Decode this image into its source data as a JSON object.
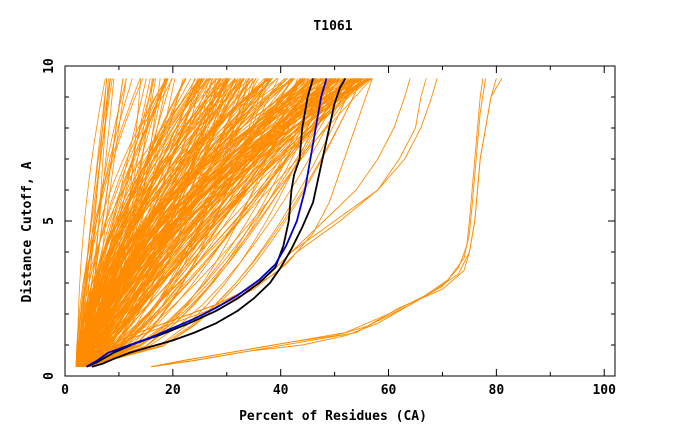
{
  "chart_data": {
    "type": "line",
    "title": "T1061",
    "xlabel": "Percent of Residues (CA)",
    "ylabel": "Distance Cutoff, A",
    "xlim": [
      0,
      102
    ],
    "ylim": [
      0,
      10
    ],
    "x_ticks": [
      0,
      20,
      40,
      60,
      80,
      100
    ],
    "y_ticks": [
      0,
      5,
      10
    ],
    "x_tick_labels": [
      "0",
      "20",
      "40",
      "60",
      "80",
      "100"
    ],
    "y_tick_labels": [
      "0",
      "5",
      "10"
    ],
    "grid": false,
    "legend": "none",
    "colors": {
      "bulk": "#ff8c00",
      "highlight_black": "#000000",
      "highlight_blue": "#0000cd",
      "axis": "#000000"
    },
    "bulk_envelope": {
      "color": "#ff8c00",
      "count": 260,
      "y_min": 0.3,
      "y_max": 9.6,
      "x_start_range": [
        2,
        5
      ],
      "x_end_range": [
        6,
        57
      ]
    },
    "series": [
      {
        "color": "#ff8c00",
        "points": [
          [
            2,
            0.3
          ],
          [
            6,
            0.8
          ],
          [
            12,
            1.3
          ],
          [
            20,
            1.8
          ],
          [
            28,
            2.3
          ],
          [
            34,
            2.8
          ],
          [
            38,
            3.3
          ],
          [
            42,
            4.0
          ],
          [
            50,
            5.0
          ],
          [
            58,
            6.0
          ],
          [
            63,
            7.0
          ],
          [
            66,
            8.0
          ],
          [
            68,
            9.0
          ],
          [
            69,
            9.6
          ]
        ]
      },
      {
        "color": "#ff8c00",
        "points": [
          [
            2,
            0.3
          ],
          [
            6,
            0.8
          ],
          [
            12,
            1.3
          ],
          [
            20,
            1.8
          ],
          [
            28,
            2.3
          ],
          [
            34,
            2.8
          ],
          [
            39,
            3.3
          ],
          [
            43,
            4.0
          ],
          [
            51,
            5.0
          ],
          [
            58,
            6.0
          ],
          [
            62,
            7.0
          ],
          [
            65,
            8.0
          ],
          [
            66,
            9.0
          ],
          [
            67,
            9.6
          ]
        ]
      },
      {
        "color": "#ff8c00",
        "points": [
          [
            2,
            0.3
          ],
          [
            6,
            0.8
          ],
          [
            12,
            1.3
          ],
          [
            20,
            1.8
          ],
          [
            28,
            2.3
          ],
          [
            34,
            2.8
          ],
          [
            38,
            3.3
          ],
          [
            42,
            4.0
          ],
          [
            48,
            5.0
          ],
          [
            54,
            6.0
          ],
          [
            58,
            7.0
          ],
          [
            61,
            8.0
          ],
          [
            63,
            9.0
          ],
          [
            64,
            9.6
          ]
        ]
      },
      {
        "color": "#ff8c00",
        "points": [
          [
            16,
            0.3
          ],
          [
            22,
            0.5
          ],
          [
            32,
            0.8
          ],
          [
            42,
            1.1
          ],
          [
            52,
            1.4
          ],
          [
            60,
            2.0
          ],
          [
            68,
            2.7
          ],
          [
            73,
            3.3
          ],
          [
            75,
            4.0
          ],
          [
            76,
            5.0
          ],
          [
            76.5,
            6.0
          ],
          [
            77,
            7.0
          ],
          [
            78,
            8.0
          ],
          [
            79,
            9.0
          ],
          [
            80,
            9.6
          ]
        ]
      },
      {
        "color": "#ff8c00",
        "points": [
          [
            16,
            0.3
          ],
          [
            24,
            0.5
          ],
          [
            34,
            0.8
          ],
          [
            44,
            1.1
          ],
          [
            54,
            1.4
          ],
          [
            58,
            1.8
          ],
          [
            62,
            2.2
          ],
          [
            70,
            2.8
          ],
          [
            74,
            3.4
          ],
          [
            75,
            4.0
          ],
          [
            76,
            5.0
          ],
          [
            76.5,
            6.0
          ],
          [
            77,
            7.0
          ],
          [
            78,
            8.0
          ],
          [
            79,
            9.0
          ],
          [
            81,
            9.6
          ]
        ]
      },
      {
        "color": "#ff8c00",
        "points": [
          [
            16,
            0.3
          ],
          [
            22,
            0.5
          ],
          [
            32,
            0.8
          ],
          [
            42,
            1.1
          ],
          [
            50,
            1.3
          ],
          [
            56,
            1.6
          ],
          [
            64,
            2.3
          ],
          [
            70,
            2.9
          ],
          [
            73,
            3.5
          ],
          [
            74.5,
            4.2
          ],
          [
            75,
            5.0
          ],
          [
            75.5,
            6.0
          ],
          [
            76,
            7.0
          ],
          [
            76.5,
            8.0
          ],
          [
            77,
            9.0
          ],
          [
            77.5,
            9.6
          ]
        ]
      },
      {
        "color": "#ff8c00",
        "points": [
          [
            16,
            0.3
          ],
          [
            24,
            0.5
          ],
          [
            34,
            0.8
          ],
          [
            44,
            1.0
          ],
          [
            52,
            1.3
          ],
          [
            58,
            1.7
          ],
          [
            66,
            2.5
          ],
          [
            71,
            3.1
          ],
          [
            74,
            3.8
          ],
          [
            75,
            4.6
          ],
          [
            75.5,
            5.5
          ],
          [
            76,
            6.5
          ],
          [
            76.5,
            7.5
          ],
          [
            77,
            8.5
          ],
          [
            78,
            9.6
          ]
        ]
      },
      {
        "color": "#ff8c00",
        "points": [
          [
            2,
            0.3
          ],
          [
            6,
            0.7
          ],
          [
            12,
            1.2
          ],
          [
            20,
            1.7
          ],
          [
            28,
            2.2
          ],
          [
            35,
            2.8
          ],
          [
            41,
            3.6
          ],
          [
            46,
            4.6
          ],
          [
            49,
            5.6
          ],
          [
            51,
            6.6
          ],
          [
            53,
            7.6
          ],
          [
            55,
            8.6
          ],
          [
            57,
            9.6
          ]
        ]
      },
      {
        "color": "#000000",
        "points": [
          [
            5,
            0.3
          ],
          [
            7,
            0.4
          ],
          [
            9,
            0.55
          ],
          [
            12,
            0.75
          ],
          [
            16,
            0.95
          ],
          [
            20,
            1.15
          ],
          [
            24,
            1.4
          ],
          [
            28,
            1.7
          ],
          [
            32,
            2.1
          ],
          [
            35,
            2.5
          ],
          [
            38,
            3.0
          ],
          [
            40,
            3.5
          ],
          [
            42,
            4.1
          ],
          [
            44,
            4.8
          ],
          [
            46,
            5.6
          ],
          [
            47,
            6.4
          ],
          [
            48,
            7.2
          ],
          [
            49,
            8.0
          ],
          [
            50,
            8.8
          ],
          [
            51,
            9.3
          ],
          [
            52,
            9.6
          ]
        ]
      },
      {
        "color": "#000000",
        "points": [
          [
            4,
            0.3
          ],
          [
            6,
            0.45
          ],
          [
            9,
            0.75
          ],
          [
            13,
            1.05
          ],
          [
            18,
            1.35
          ],
          [
            23,
            1.7
          ],
          [
            28,
            2.1
          ],
          [
            32,
            2.5
          ],
          [
            36,
            3.0
          ],
          [
            39,
            3.5
          ],
          [
            40.5,
            4.2
          ],
          [
            41.5,
            5.0
          ],
          [
            42,
            6.0
          ],
          [
            42.5,
            6.5
          ],
          [
            43.5,
            7.0
          ],
          [
            44,
            8.0
          ],
          [
            45,
            9.0
          ],
          [
            46,
            9.6
          ]
        ]
      },
      {
        "color": "#0000cd",
        "points": [
          [
            4,
            0.3
          ],
          [
            6,
            0.5
          ],
          [
            8,
            0.75
          ],
          [
            12,
            1.0
          ],
          [
            16,
            1.25
          ],
          [
            20,
            1.55
          ],
          [
            24,
            1.85
          ],
          [
            28,
            2.2
          ],
          [
            32,
            2.6
          ],
          [
            36,
            3.1
          ],
          [
            39,
            3.6
          ],
          [
            41,
            4.2
          ],
          [
            43,
            5.0
          ],
          [
            44.5,
            6.0
          ],
          [
            45.5,
            7.0
          ],
          [
            46.5,
            8.0
          ],
          [
            47.5,
            9.0
          ],
          [
            48.5,
            9.6
          ]
        ]
      }
    ]
  }
}
